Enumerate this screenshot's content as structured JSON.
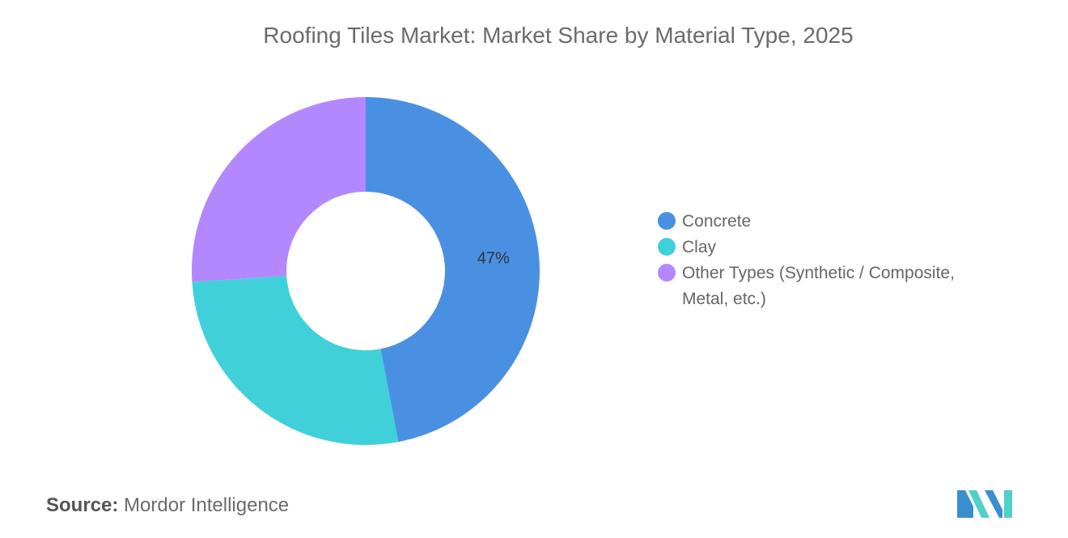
{
  "chart_data": {
    "type": "pie",
    "title": "Roofing Tiles Market: Market Share by Material Type, 2025",
    "labels": [
      "Concrete",
      "Clay",
      "Other Types (Synthetic / Composite, Metal, etc.)"
    ],
    "values": [
      47,
      27,
      26
    ],
    "data_labels": [
      "47%",
      "",
      ""
    ],
    "colors": [
      "#4a90e2",
      "#40d0da",
      "#b388ff"
    ],
    "legend_position": "right",
    "donut": true
  },
  "source": {
    "label": "Source:",
    "text": "Mordor Intelligence"
  },
  "logo": {
    "icon": "mordor-intelligence-logo",
    "colors": [
      "#3a8fd0",
      "#4fd1c8"
    ]
  }
}
